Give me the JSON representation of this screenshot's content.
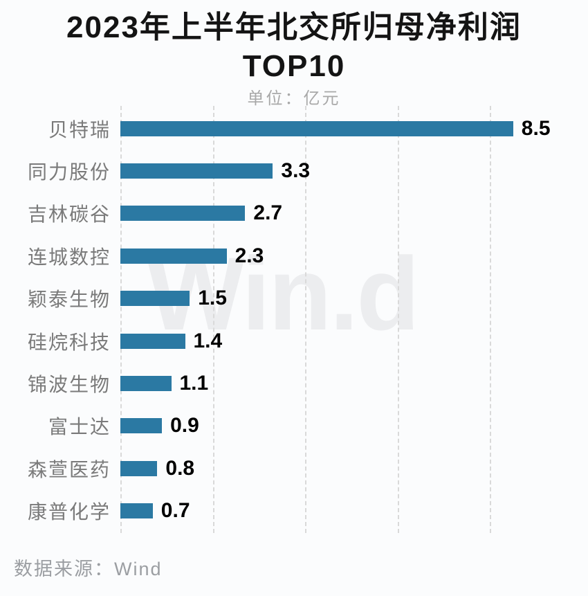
{
  "page": {
    "background": "#fbfcfd"
  },
  "header": {
    "title_line1": "2023年上半年北交所归母净利润",
    "title_line2": "TOP10",
    "subtitle": "单位：亿元"
  },
  "chart_data": {
    "type": "bar",
    "orientation": "horizontal",
    "title": "2023年上半年北交所归母净利润TOP10",
    "unit_label": "单位：亿元",
    "categories": [
      "贝特瑞",
      "同力股份",
      "吉林碳谷",
      "连城数控",
      "颖泰生物",
      "硅烷科技",
      "锦波生物",
      "富士达",
      "森萱医药",
      "康普化学"
    ],
    "values": [
      8.5,
      3.3,
      2.7,
      2.3,
      1.5,
      1.4,
      1.1,
      0.9,
      0.8,
      0.7
    ],
    "value_axis_range": [
      0,
      10
    ],
    "gridlines_at": [
      0,
      2,
      4,
      6,
      8
    ],
    "grid_style": "dashed-vertical",
    "bar_color": "#2b79a3",
    "category_label_color": "#7a7a7a",
    "value_label_color": "#000000",
    "gridline_color": "#d9d9d9"
  },
  "watermark": {
    "text": "Win.d",
    "color": "#ecedef"
  },
  "footer": {
    "source": "数据来源：Wind"
  }
}
